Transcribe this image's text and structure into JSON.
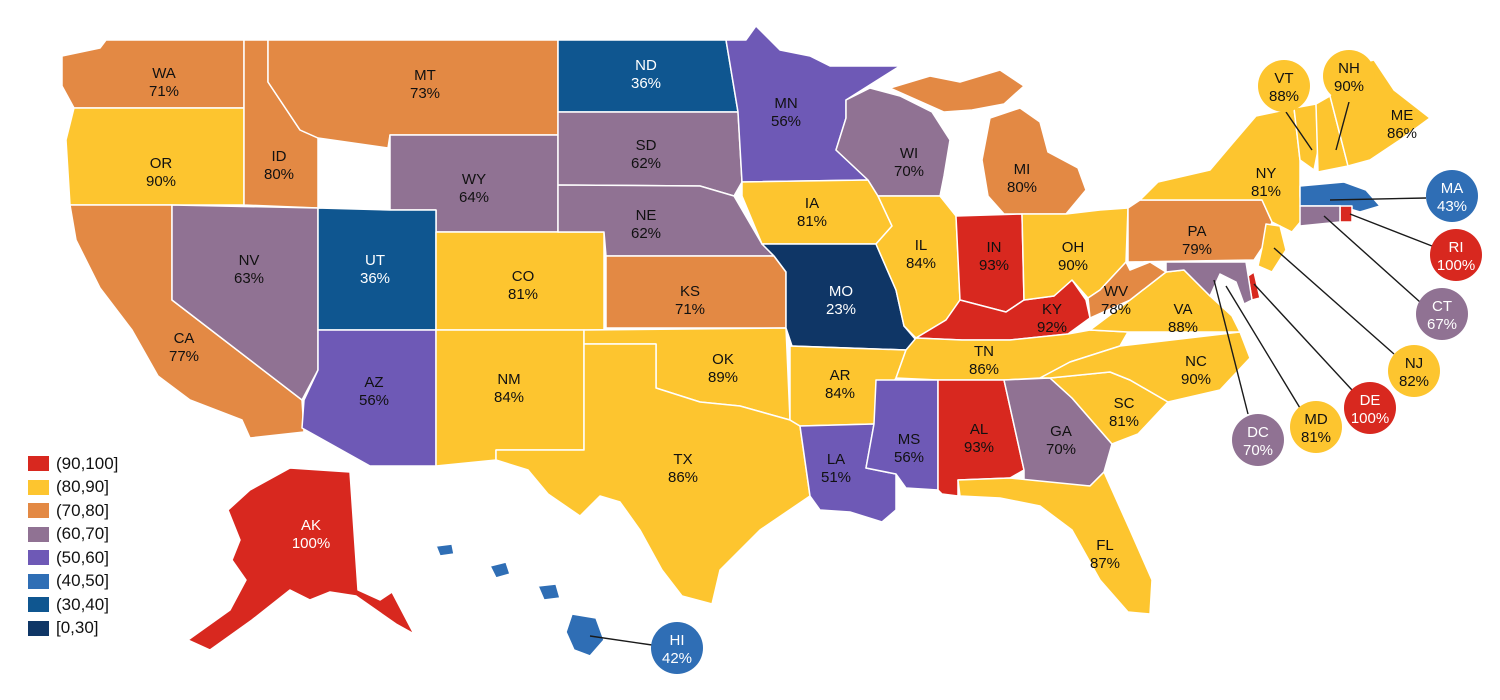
{
  "colors": {
    "b90": "#d8281f",
    "b80": "#fdc52f",
    "b70": "#e38944",
    "b60": "#907293",
    "b50": "#6e59b6",
    "b40": "#2f6eb5",
    "b30": "#0f5690",
    "b0": "#0f3666"
  },
  "legend": [
    {
      "label": "(90,100]",
      "key": "b90"
    },
    {
      "label": "(80,90]",
      "key": "b80"
    },
    {
      "label": "(70,80]",
      "key": "b70"
    },
    {
      "label": "(60,70]",
      "key": "b60"
    },
    {
      "label": "(50,60]",
      "key": "b50"
    },
    {
      "label": "(40,50]",
      "key": "b40"
    },
    {
      "label": "(30,40]",
      "key": "b30"
    },
    {
      "label": "[0,30]",
      "key": "b0"
    }
  ],
  "states": [
    {
      "abbr": "WA",
      "value": "71%"
    },
    {
      "abbr": "OR",
      "value": "90%"
    },
    {
      "abbr": "CA",
      "value": "77%"
    },
    {
      "abbr": "ID",
      "value": "80%"
    },
    {
      "abbr": "NV",
      "value": "63%"
    },
    {
      "abbr": "MT",
      "value": "73%"
    },
    {
      "abbr": "WY",
      "value": "64%"
    },
    {
      "abbr": "UT",
      "value": "36%"
    },
    {
      "abbr": "AZ",
      "value": "56%"
    },
    {
      "abbr": "CO",
      "value": "81%"
    },
    {
      "abbr": "NM",
      "value": "84%"
    },
    {
      "abbr": "ND",
      "value": "36%"
    },
    {
      "abbr": "SD",
      "value": "62%"
    },
    {
      "abbr": "NE",
      "value": "62%"
    },
    {
      "abbr": "KS",
      "value": "71%"
    },
    {
      "abbr": "OK",
      "value": "89%"
    },
    {
      "abbr": "TX",
      "value": "86%"
    },
    {
      "abbr": "MN",
      "value": "56%"
    },
    {
      "abbr": "IA",
      "value": "81%"
    },
    {
      "abbr": "MO",
      "value": "23%"
    },
    {
      "abbr": "AR",
      "value": "84%"
    },
    {
      "abbr": "LA",
      "value": "51%"
    },
    {
      "abbr": "WI",
      "value": "70%"
    },
    {
      "abbr": "IL",
      "value": "84%"
    },
    {
      "abbr": "MS",
      "value": "56%"
    },
    {
      "abbr": "MI",
      "value": "80%"
    },
    {
      "abbr": "IN",
      "value": "93%"
    },
    {
      "abbr": "KY",
      "value": "92%"
    },
    {
      "abbr": "TN",
      "value": "86%"
    },
    {
      "abbr": "AL",
      "value": "93%"
    },
    {
      "abbr": "OH",
      "value": "90%"
    },
    {
      "abbr": "WV",
      "value": "78%"
    },
    {
      "abbr": "VA",
      "value": "88%"
    },
    {
      "abbr": "NC",
      "value": "90%"
    },
    {
      "abbr": "SC",
      "value": "81%"
    },
    {
      "abbr": "GA",
      "value": "70%"
    },
    {
      "abbr": "FL",
      "value": "87%"
    },
    {
      "abbr": "PA",
      "value": "79%"
    },
    {
      "abbr": "NY",
      "value": "81%"
    },
    {
      "abbr": "ME",
      "value": "86%"
    },
    {
      "abbr": "AK",
      "value": "100%"
    }
  ],
  "callouts": [
    {
      "abbr": "VT",
      "value": "88%"
    },
    {
      "abbr": "NH",
      "value": "90%"
    },
    {
      "abbr": "MA",
      "value": "43%"
    },
    {
      "abbr": "RI",
      "value": "100%"
    },
    {
      "abbr": "CT",
      "value": "67%"
    },
    {
      "abbr": "NJ",
      "value": "82%"
    },
    {
      "abbr": "DE",
      "value": "100%"
    },
    {
      "abbr": "MD",
      "value": "81%"
    },
    {
      "abbr": "DC",
      "value": "70%"
    },
    {
      "abbr": "HI",
      "value": "42%"
    }
  ]
}
